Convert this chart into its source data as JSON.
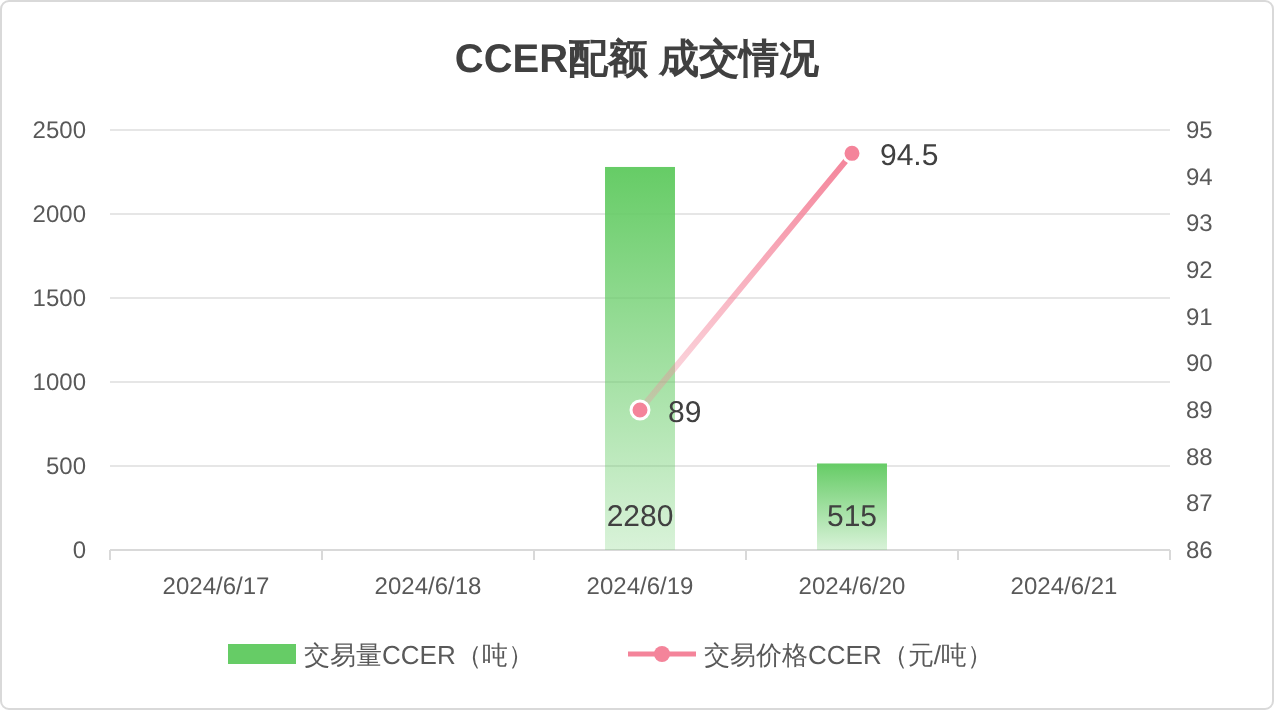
{
  "chart_data": {
    "type": "bar",
    "title": "CCER配额 成交情况",
    "categories": [
      "2024/6/17",
      "2024/6/18",
      "2024/6/19",
      "2024/6/20",
      "2024/6/21"
    ],
    "series": [
      {
        "name": "交易量CCER（吨）",
        "color": "#66cc66",
        "values": [
          null,
          null,
          2280,
          515,
          null
        ]
      },
      {
        "name": "交易价格CCER（元/吨）",
        "type": "line",
        "axis": "y2",
        "color": "#f4849a",
        "marker": "circle",
        "values": [
          null,
          null,
          89,
          94.5,
          null
        ]
      }
    ],
    "ylim": [
      0,
      2500
    ],
    "yticks": [
      0,
      500,
      1000,
      1500,
      2000,
      2500
    ],
    "y2lim": [
      86,
      95
    ],
    "y2ticks": [
      86,
      87,
      88,
      89,
      90,
      91,
      92,
      93,
      94,
      95
    ],
    "grid": "y",
    "legend": "bottom",
    "data_labels": true
  }
}
